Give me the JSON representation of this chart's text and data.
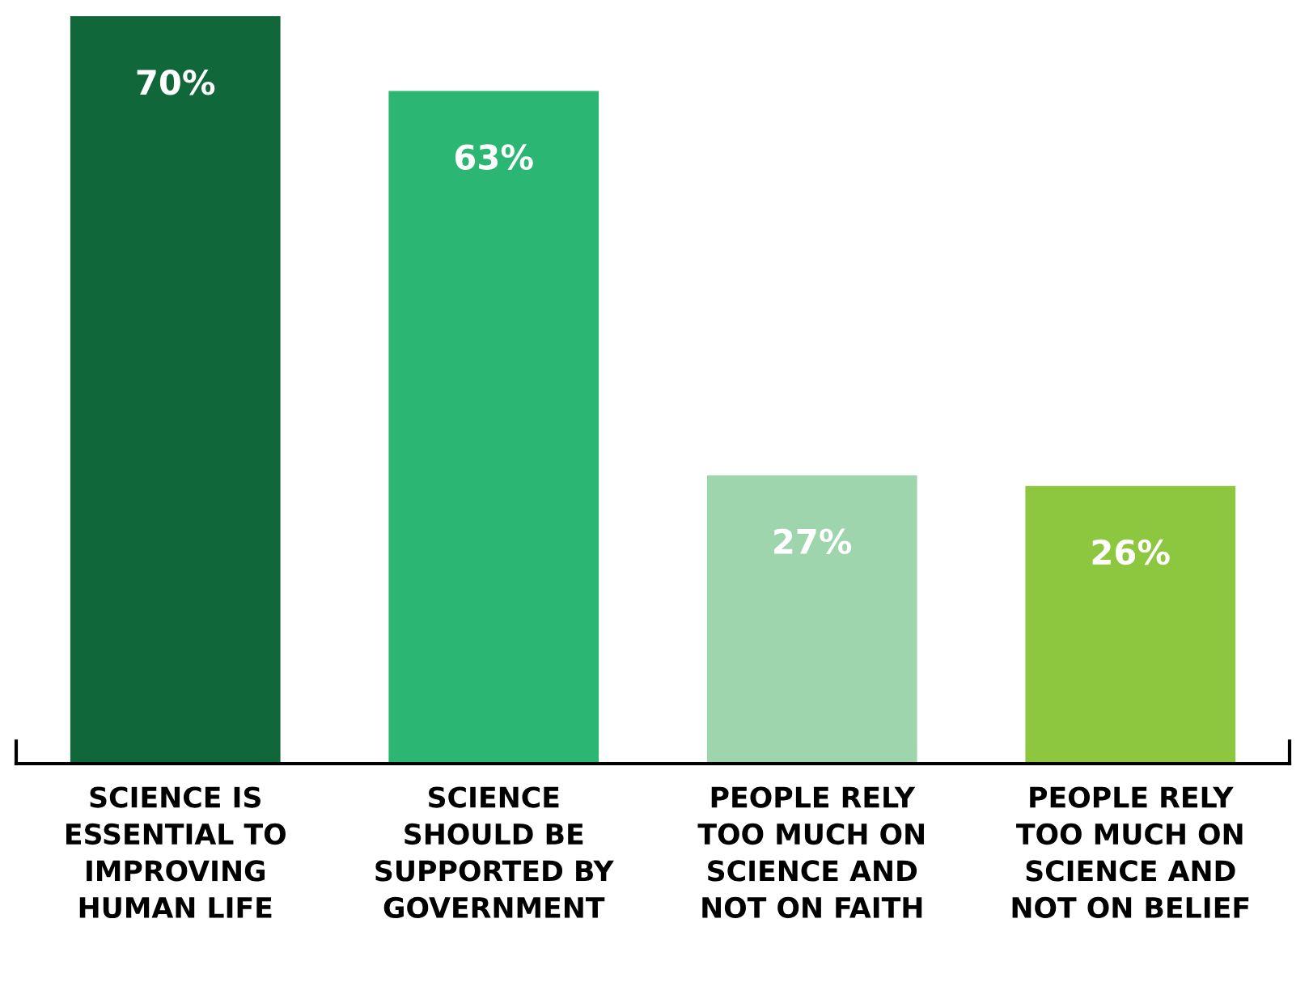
{
  "chart_data": {
    "type": "bar",
    "categories": [
      "SCIENCE IS\nESSENTIAL TO\nIMPROVING\nHUMAN LIFE",
      "SCIENCE\nSHOULD BE\nSUPPORTED BY\nGOVERNMENT",
      "PEOPLE RELY\nTOO MUCH ON\nSCIENCE AND\nNOT ON FAITH",
      "PEOPLE RELY\nTOO MUCH ON\nSCIENCE AND\nNOT ON BELIEF"
    ],
    "values": [
      70,
      63,
      27,
      26
    ],
    "colors": [
      "#10673a",
      "#2bb673",
      "#9ed5ac",
      "#8dc63f"
    ],
    "value_labels": [
      "70%",
      "63%",
      "27%",
      "26%"
    ]
  }
}
